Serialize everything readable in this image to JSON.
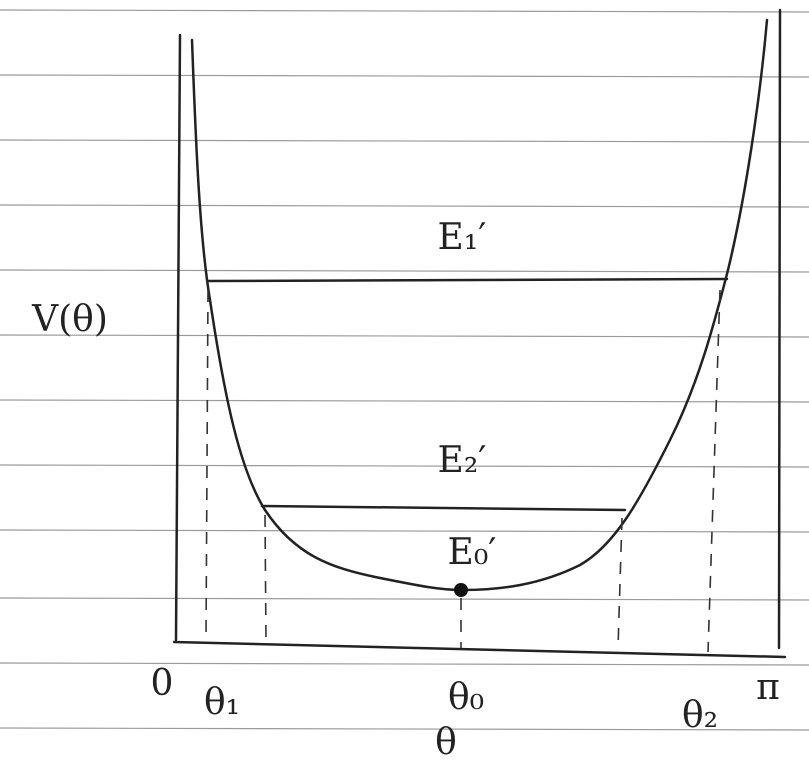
{
  "axis": {
    "y_label": "V(θ)",
    "x_label": "θ"
  },
  "levels": [
    {
      "label": "E₁′"
    },
    {
      "label": "E₂′"
    },
    {
      "label": "E₀′"
    }
  ],
  "x_marks": [
    {
      "label": "0"
    },
    {
      "label": "θ₁"
    },
    {
      "label": "θ₀"
    },
    {
      "label": "θ₂"
    },
    {
      "label": "π"
    }
  ]
}
